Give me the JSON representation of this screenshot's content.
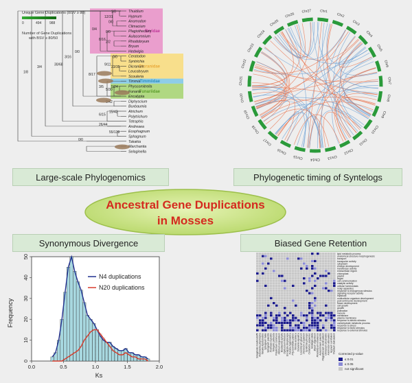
{
  "main_title": {
    "line1": "Ancestral Gene Duplications",
    "line2": "in Mosses"
  },
  "labels": {
    "phylogenomics": "Large-scale Phylogenomics",
    "syntelogs": "Phylogenetic timing of Syntelogs",
    "synonymous": "Synonymous Divergence",
    "biased": "Biased Gene Retention"
  },
  "tree": {
    "legend_title1": "Unique Gene Duplications (BSV ≥ 80)",
    "legend_scale": [
      "0",
      "494",
      "988"
    ],
    "legend_title2": "Number of Gene Duplications",
    "legend_title3": "with BSV ≥ 80/50",
    "clades": [
      {
        "name": "Bryidae",
        "color": "#e98fc7",
        "text_color": "#c0399a"
      },
      {
        "name": "Dicranidae",
        "color": "#f9dc7a",
        "text_color": "#e8a93a"
      },
      {
        "name": "Timmiidae",
        "color": "#7cc7e6",
        "text_color": "#2d8fbf"
      },
      {
        "name": "Funariidae",
        "color": "#a4d36e",
        "text_color": "#5a9c2a"
      }
    ],
    "taxa": [
      "Thuidium",
      "Hypnum",
      "Anomodon",
      "Climacium",
      "Plagiothecium",
      "Aulacomnium",
      "Rhodobryum",
      "Bryum",
      "Hedwigia",
      "Ceratodon",
      "Syntrichia",
      "Dicranum",
      "Leucobryum",
      "Scouleria",
      "Timmia",
      "Physcomitrella",
      "Funaria",
      "Encalypta",
      "Diphyscium",
      "Buxbaumia",
      "Atrichum",
      "Polytrichum",
      "Tetraphis",
      "Andreaea",
      "Eosphagnum",
      "Sphagnum",
      "Takakia",
      "Marchantia",
      "Selaginella"
    ],
    "node_counts": [
      "1/0",
      "0/0",
      "12/31",
      "0/0",
      "2/2",
      "8/16",
      "0/4",
      "0/0",
      "23/35",
      "9/11",
      "5/24",
      "5/30",
      "3/5",
      "8/17",
      "0/0",
      "9/42",
      "3/16",
      "15/42",
      "6/15",
      "30/68",
      "26/44",
      "3/4",
      "55/139",
      "1/8",
      "0/0"
    ]
  },
  "circos": {
    "chromosomes": [
      "Chr1",
      "Chr2",
      "Chr3",
      "Chr4",
      "Chr5",
      "Chr6",
      "Chr7",
      "Chr8",
      "Chr9",
      "Chr10",
      "Chr11",
      "Chr12",
      "Chr13",
      "Chr14",
      "Chr15",
      "Chr16",
      "Chr17",
      "Chr18",
      "Chr19",
      "Chr20",
      "Chr21",
      "Chr22",
      "Chr23",
      "Chr24",
      "Chr25",
      "Chr26",
      "Chr27"
    ],
    "link_colors": [
      "#e8704a",
      "#6a9fd4"
    ]
  },
  "chart_data": {
    "type": "bar",
    "xlabel": "Ks",
    "ylabel": "Frequency",
    "xlim": [
      0,
      2.0
    ],
    "ylim": [
      0,
      50
    ],
    "xticks": [
      "0.0",
      "0.5",
      "1.0",
      "1.5",
      "2.0"
    ],
    "yticks": [
      "0",
      "10",
      "20",
      "30",
      "40",
      "50"
    ],
    "bin_width": 0.05,
    "x": [
      0.325,
      0.375,
      0.425,
      0.475,
      0.525,
      0.575,
      0.625,
      0.675,
      0.725,
      0.775,
      0.825,
      0.875,
      0.925,
      0.975,
      1.025,
      1.075,
      1.125,
      1.175,
      1.225,
      1.275,
      1.325,
      1.375,
      1.425,
      1.475,
      1.525,
      1.575,
      1.625,
      1.675,
      1.725,
      1.775,
      1.825
    ],
    "series": [
      {
        "name": "N4 duplications",
        "color": "#1f2f8f",
        "values": [
          2,
          4,
          10,
          20,
          33,
          45,
          50,
          43,
          38,
          34,
          28,
          22,
          20,
          18,
          15,
          12,
          10,
          9,
          9,
          7,
          6,
          5,
          5,
          6,
          4,
          4,
          3,
          3,
          2,
          2,
          1
        ]
      },
      {
        "name": "N20 duplications",
        "color": "#d83a2a",
        "values": [
          0,
          0,
          0,
          0,
          1,
          2,
          3,
          4,
          5,
          7,
          10,
          12,
          14,
          15,
          15,
          13,
          11,
          9,
          7,
          5,
          4,
          3,
          3,
          4,
          3,
          2,
          2,
          1,
          1,
          1,
          0
        ]
      }
    ]
  },
  "heatmap": {
    "go_terms": [
      "lipid metabolic process",
      "anatomical structure morphogenesis",
      "transport",
      "transporter activity",
      "cytoplasm",
      "embryo development",
      "transferase activity",
      "extracellular region",
      "chloroplast",
      "plastid",
      "lingan",
      "cell communication",
      "catalytic activity",
      "cellular homeostasis",
      "Golgi apparatus",
      "response to endogenous stimulus",
      "signaling receptor activity",
      "thylakoid",
      "multicellular organism development",
      "post-embryonic development",
      "flower development",
      "cell growth",
      "growth",
      "pollination",
      "vacuole",
      "membrane",
      "plasma membrane",
      "response to abiotic stimulus",
      "carbohydrate metabolic process",
      "response to stress",
      "response to biotic stimulus",
      "response to external stimulus"
    ],
    "species": [
      "Selaginella moellendorffii",
      "Marchantia polymorpha",
      "Takakia lepidozioides",
      "Sphagnum fallax",
      "Sphagnum palustre",
      "Andreaea rupestris",
      "Tetraphis pellucida",
      "Polytrichum commune",
      "Atrichum angustatum",
      "Buxbaumia aphylla",
      "Diphyscium foliosum",
      "Encalypta streptocarpa",
      "Funaria hygrometrica",
      "Physcomitrella patens",
      "Timmia austriaca",
      "Scouleria aquatica",
      "Leucobryum glaucum",
      "Dicranum scoparium",
      "Syntrichia princeps",
      "Ceratodon purpureus",
      "Hedwigia ciliata",
      "Bryum argenteum",
      "Rhodobryum ontariense",
      "Aulacomnium palustre",
      "Plagiothecium denticulatum",
      "Climacium dendroides",
      "Anomodon attenuatus",
      "Hypnum curvifolium",
      "Thuidium delicatulum"
    ],
    "legend_title": "Corrected p-value",
    "legend_items": [
      "≤ 0.01",
      "≤ 0.05",
      "not significant"
    ],
    "legend_colors": [
      "#1a1a8c",
      "#8a8ad6",
      "#c8c8c8"
    ]
  }
}
